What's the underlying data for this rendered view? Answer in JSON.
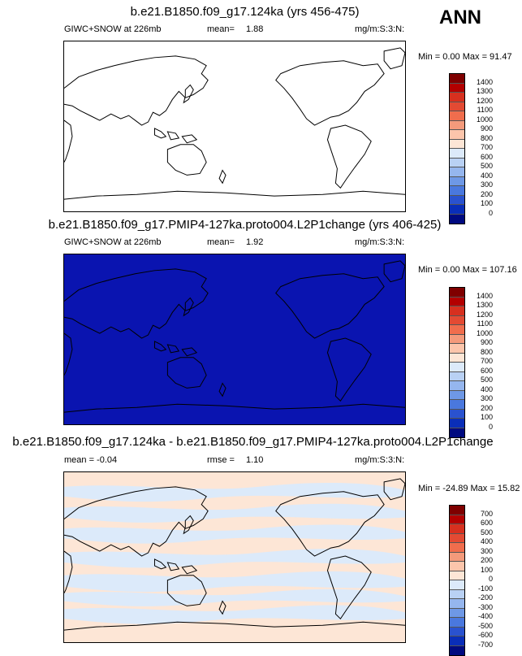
{
  "season": "ANN",
  "panels": [
    {
      "title": "b.e21.B1850.f09_g17.124ka (yrs 456-475)",
      "left_label": "GIWC+SNOW at 226mb",
      "mid_label": "mean=",
      "mid_value": "1.88",
      "units": "mg/m:S:3:N:",
      "minmax": "Min =   0.00 Max =  91.47",
      "map_fill": "#ffffff",
      "colorbar_labels": [
        "1400",
        "1300",
        "1200",
        "1100",
        "1000",
        "900",
        "800",
        "700",
        "600",
        "500",
        "400",
        "300",
        "200",
        "100",
        "0"
      ]
    },
    {
      "title": "b.e21.B1850.f09_g17.PMIP4-127ka.proto004.L2P1change (yrs 406-425)",
      "left_label": "GIWC+SNOW at 226mb",
      "mid_label": "mean=",
      "mid_value": "1.92",
      "units": "mg/m:S:3:N:",
      "minmax": "Min =   0.00 Max = 107.16",
      "map_fill": "#0a14b0",
      "colorbar_labels": [
        "1400",
        "1300",
        "1200",
        "1100",
        "1000",
        "900",
        "800",
        "700",
        "600",
        "500",
        "400",
        "300",
        "200",
        "100",
        "0"
      ]
    },
    {
      "title": "b.e21.B1850.f09_g17.124ka - b.e21.B1850.f09_g17.PMIP4-127ka.proto004.L2P1change",
      "left_label": "mean =  -0.04",
      "mid_label": "rmse =",
      "mid_value": "1.10",
      "units": "mg/m:S:3:N:",
      "minmax": "Min = -24.89 Max =  15.82",
      "map_fill": "#fde6d6",
      "colorbar_labels": [
        "700",
        "600",
        "500",
        "400",
        "300",
        "200",
        "100",
        "0",
        "-100",
        "-200",
        "-300",
        "-400",
        "-500",
        "-600",
        "-700"
      ]
    }
  ],
  "colorbar_colors": [
    "#7f0000",
    "#b30000",
    "#d7301f",
    "#e34a33",
    "#f06d4d",
    "#f49a7b",
    "#fcc5ab",
    "#fde6d6",
    "#dceafa",
    "#b9d1f4",
    "#95b6ee",
    "#6e98e6",
    "#4a78de",
    "#2a52cf",
    "#0a2eb8",
    "#000a80"
  ]
}
